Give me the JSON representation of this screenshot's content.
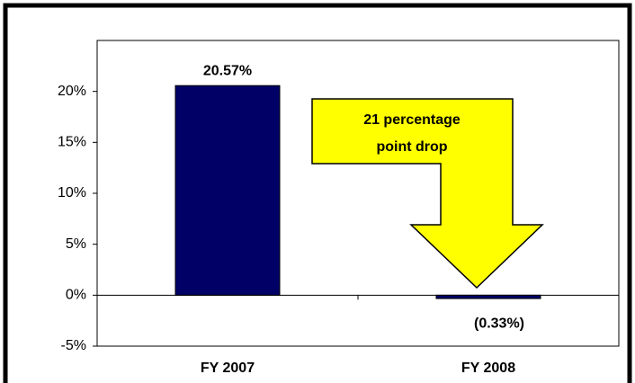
{
  "chart_data": {
    "type": "bar",
    "categories": [
      "FY 2007",
      "FY 2008"
    ],
    "values": [
      20.57,
      -0.33
    ],
    "value_labels": [
      "20.57%",
      "(0.33%)"
    ],
    "color": "#000066",
    "ylim": [
      -5,
      25
    ],
    "yticks": [
      {
        "value": -5,
        "label": "-5%"
      },
      {
        "value": 0,
        "label": "0%"
      },
      {
        "value": 5,
        "label": "5%"
      },
      {
        "value": 10,
        "label": "10%"
      },
      {
        "value": 15,
        "label": "15%"
      },
      {
        "value": 20,
        "label": "20%"
      }
    ],
    "annotation": [
      "21 percentage",
      "point drop"
    ]
  }
}
